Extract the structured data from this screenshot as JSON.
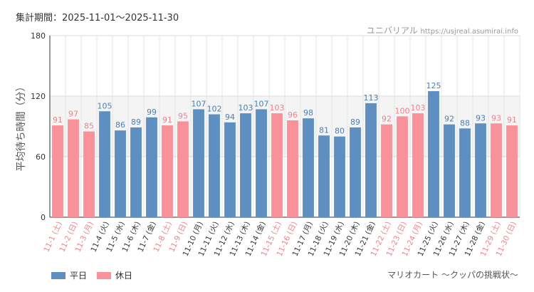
{
  "header": {
    "period": "集計期間：2025-11-01〜2025-11-30",
    "site_name": "ユニバリアル",
    "site_url": "https://usjreal.asumirai.info"
  },
  "footer": {
    "attraction": "マリオカート 〜クッパの挑戦状〜"
  },
  "colors": {
    "weekday": "#5f8fc0",
    "holiday": "#f89199"
  },
  "chart_data": {
    "type": "bar",
    "title": "",
    "ylabel": "平均待ち時間（分）",
    "xlabel": "",
    "ylim": [
      0,
      180
    ],
    "yticks": [
      0,
      60,
      120,
      180
    ],
    "grid": true,
    "legend": [
      {
        "name": "平日",
        "kind": "weekday"
      },
      {
        "name": "休日",
        "kind": "holiday"
      }
    ],
    "categories": [
      "11-1 (土)",
      "11-2 (日)",
      "11-3 (月)",
      "11-4 (火)",
      "11-5 (水)",
      "11-6 (木)",
      "11-7 (金)",
      "11-8 (土)",
      "11-9 (日)",
      "11-10 (月)",
      "11-11 (火)",
      "11-12 (水)",
      "11-13 (木)",
      "11-14 (金)",
      "11-15 (土)",
      "11-16 (日)",
      "11-17 (月)",
      "11-18 (火)",
      "11-19 (水)",
      "11-20 (木)",
      "11-21 (金)",
      "11-22 (土)",
      "11-23 (日)",
      "11-24 (月)",
      "11-25 (火)",
      "11-26 (水)",
      "11-27 (木)",
      "11-28 (金)",
      "11-29 (土)",
      "11-30 (日)"
    ],
    "values": [
      91,
      97,
      85,
      105,
      86,
      89,
      99,
      91,
      95,
      107,
      102,
      94,
      103,
      107,
      103,
      96,
      98,
      81,
      80,
      89,
      113,
      92,
      100,
      103,
      125,
      92,
      88,
      93,
      93,
      91
    ],
    "kinds": [
      "holiday",
      "holiday",
      "holiday",
      "weekday",
      "weekday",
      "weekday",
      "weekday",
      "holiday",
      "holiday",
      "weekday",
      "weekday",
      "weekday",
      "weekday",
      "weekday",
      "holiday",
      "holiday",
      "weekday",
      "weekday",
      "weekday",
      "weekday",
      "weekday",
      "holiday",
      "holiday",
      "holiday",
      "weekday",
      "weekday",
      "weekday",
      "weekday",
      "holiday",
      "holiday"
    ]
  }
}
